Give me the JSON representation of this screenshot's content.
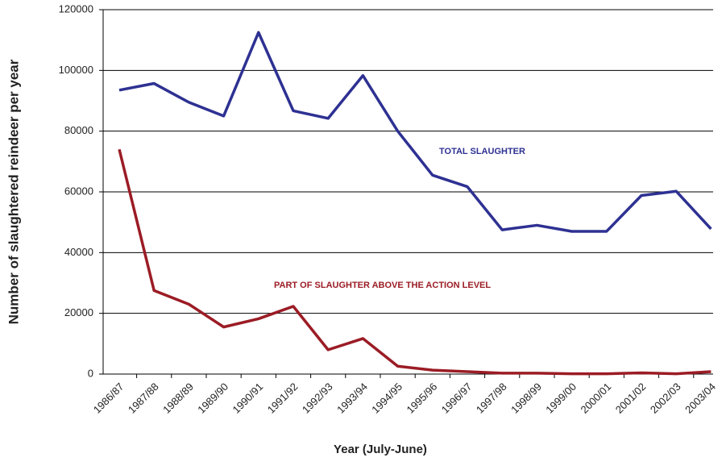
{
  "chart_data": {
    "type": "line",
    "x_label": "Year (July-June)",
    "y_label": "Number of slaughtered reindeer per year",
    "categories": [
      "1986/87",
      "1987/88",
      "1988/89",
      "1989/90",
      "1990/91",
      "1991/92",
      "1992/93",
      "1993/94",
      "1994/95",
      "1995/96",
      "1996/97",
      "1997/98",
      "1998/99",
      "1999/00",
      "2000/01",
      "2001/02",
      "2002/03",
      "2003/04"
    ],
    "series": [
      {
        "name": "TOTAL SLAUGHTER",
        "color": "#2e3192",
        "values": [
          93500,
          95700,
          89500,
          85000,
          112500,
          86700,
          84200,
          98300,
          80000,
          65500,
          61700,
          47500,
          49000,
          47000,
          47000,
          58800,
          60200,
          47800
        ]
      },
      {
        "name": "PART OF SLAUGHTER ABOVE THE ACTION LEVEL",
        "color": "#9b1c25",
        "values": [
          74000,
          27500,
          23000,
          15500,
          18200,
          22300,
          8000,
          11700,
          2600,
          1300,
          800,
          300,
          300,
          100,
          100,
          400,
          100,
          800
        ]
      }
    ],
    "ylim": [
      0,
      120000
    ],
    "yticks": [
      0,
      20000,
      40000,
      60000,
      80000,
      100000,
      120000
    ],
    "grid": true
  }
}
